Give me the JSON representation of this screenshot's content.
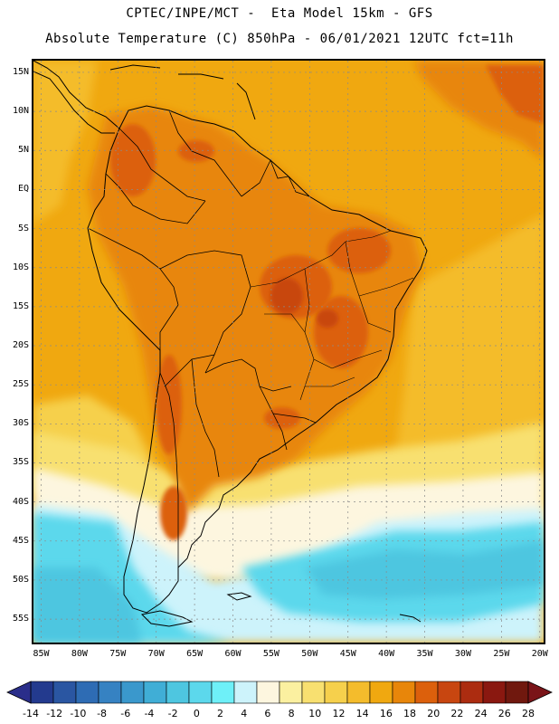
{
  "header": {
    "line1": "CPTEC/INPE/MCT -  Eta Model 15km - GFS",
    "line2": "Absolute Temperature (C) 850hPa - 06/01/2021 12UTC fct=11h"
  },
  "map": {
    "region": "South America",
    "variable": "Absolute Temperature (C) 850hPa",
    "lat_labels": [
      "15N",
      "10N",
      "5N",
      "EQ",
      "5S",
      "10S",
      "15S",
      "20S",
      "25S",
      "30S",
      "35S",
      "40S",
      "45S",
      "50S",
      "55S"
    ],
    "lon_labels": [
      "85W",
      "80W",
      "75W",
      "70W",
      "65W",
      "60W",
      "55W",
      "50W",
      "45W",
      "40W",
      "35W",
      "30W",
      "25W",
      "20W"
    ],
    "lat_values": [
      15,
      10,
      5,
      0,
      -5,
      -10,
      -15,
      -20,
      -25,
      -30,
      -35,
      -40,
      -45,
      -50,
      -55
    ],
    "lon_values": [
      -85,
      -80,
      -75,
      -70,
      -65,
      -60,
      -55,
      -50,
      -45,
      -40,
      -35,
      -30,
      -25,
      -20
    ],
    "lat_range": [
      -58,
      16.5
    ],
    "lon_range": [
      -86,
      -19.5
    ],
    "colors": {
      "ocean_south": "#5ed8ee",
      "ocean_deep": "#3ebee0",
      "tropical_base": "#f0aa08",
      "land_warm": "#e07a14",
      "land_hot": "#c8520a",
      "pale_band": "#fdf6cc",
      "yellow_band": "#f6d84a"
    }
  },
  "colorbar": {
    "labels": [
      "-14",
      "-12",
      "-10",
      "-8",
      "-6",
      "-4",
      "-2",
      "0",
      "2",
      "4",
      "6",
      "8",
      "10",
      "12",
      "14",
      "16",
      "18",
      "20",
      "22",
      "24",
      "26",
      "28"
    ],
    "under_color": "#2a2e8a",
    "over_color": "#7a1418",
    "colors": [
      "#233a8e",
      "#2a56a2",
      "#2e6cb4",
      "#3682c2",
      "#3a98cc",
      "#40aed6",
      "#4ec6e0",
      "#5cd8ec",
      "#6ef0f8",
      "#cdf3fb",
      "#fdf6df",
      "#fbf0a0",
      "#f8e070",
      "#f6d04c",
      "#f4bc2c",
      "#f0a810",
      "#e8860a",
      "#dc600c",
      "#c84610",
      "#ac2c10",
      "#8a1810",
      "#70180e"
    ]
  }
}
